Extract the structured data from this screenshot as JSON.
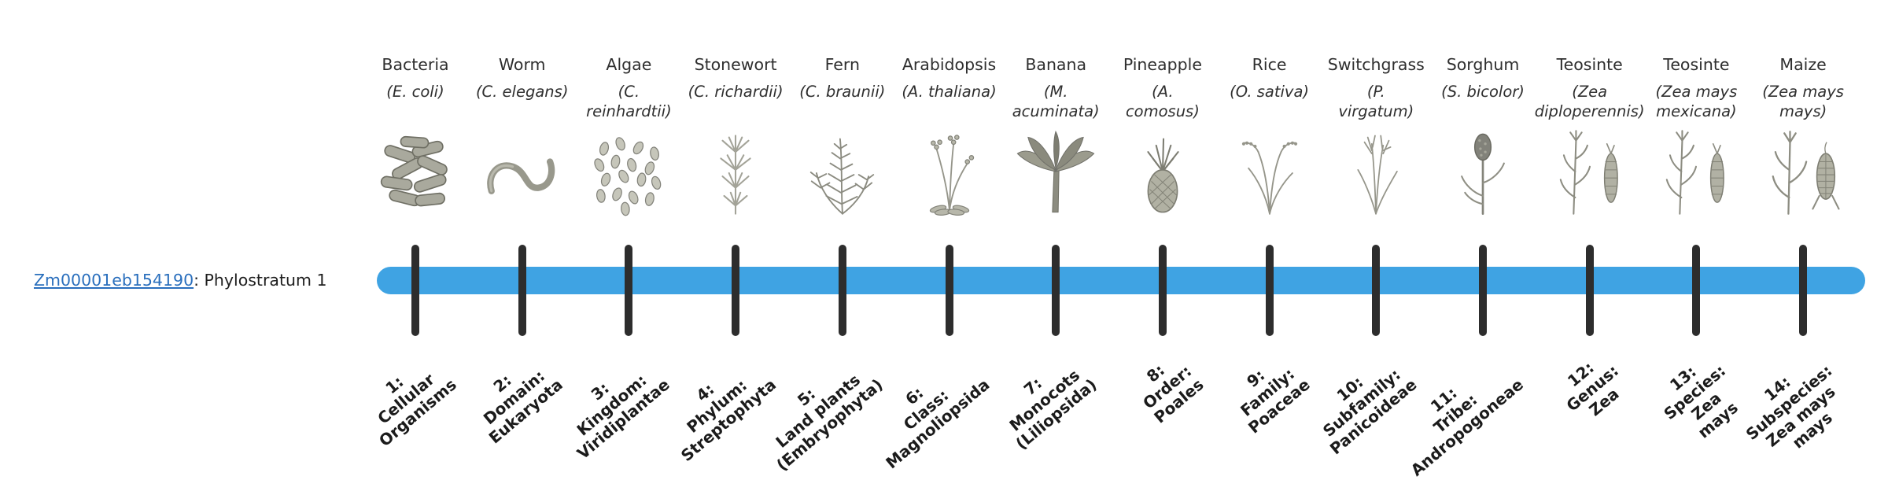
{
  "row": {
    "gene_id": "Zm00001eb154190",
    "label_rest": ": Phylostratum 1"
  },
  "colors": {
    "bar": "#3fa3e3",
    "tick": "#2d2d2d",
    "link": "#2a6fbd"
  },
  "columns": [
    {
      "name": "Bacteria",
      "sci": "(E. coli)",
      "icon": "bacteria-icon",
      "stratum": "1:\nCellular\nOrganisms"
    },
    {
      "name": "Worm",
      "sci": "(C. elegans)",
      "icon": "worm-icon",
      "stratum": "2:\nDomain:\nEukaryota"
    },
    {
      "name": "Algae",
      "sci": "(C.\nreinhardtii)",
      "icon": "algae-icon",
      "stratum": "3:\nKingdom:\nViridiplantae"
    },
    {
      "name": "Stonewort",
      "sci": "(C. richardii)",
      "icon": "stonewort-icon",
      "stratum": "4:\nPhylum:\nStreptophyta"
    },
    {
      "name": "Fern",
      "sci": "(C. braunii)",
      "icon": "fern-icon",
      "stratum": "5:\nLand plants\n(Embryophyta)"
    },
    {
      "name": "Arabidopsis",
      "sci": "(A. thaliana)",
      "icon": "arabidopsis-icon",
      "stratum": "6:\nClass:\nMagnoliopsida"
    },
    {
      "name": "Banana",
      "sci": "(M.\nacuminata)",
      "icon": "banana-icon",
      "stratum": "7:\nMonocots\n(Liliopsida)"
    },
    {
      "name": "Pineapple",
      "sci": "(A.\ncomosus)",
      "icon": "pineapple-icon",
      "stratum": "8:\nOrder:\nPoales"
    },
    {
      "name": "Rice",
      "sci": "(O. sativa)",
      "icon": "rice-icon",
      "stratum": "9:\nFamily:\nPoaceae"
    },
    {
      "name": "Switchgrass",
      "sci": "(P.\nvirgatum)",
      "icon": "switchgrass-icon",
      "stratum": "10:\nSubfamily:\nPanicoideae"
    },
    {
      "name": "Sorghum",
      "sci": "(S. bicolor)",
      "icon": "sorghum-icon",
      "stratum": "11:\nTribe:\nAndropogoneae"
    },
    {
      "name": "Teosinte",
      "sci": "(Zea\ndiploperennis)",
      "icon": "teosinte-icon",
      "stratum": "12:\nGenus:\nZea"
    },
    {
      "name": "Teosinte",
      "sci": "(Zea mays\nmexicana)",
      "icon": "teosinte-icon",
      "stratum": "13:\nSpecies:\nZea\nmays"
    },
    {
      "name": "Maize",
      "sci": "(Zea mays\nmays)",
      "icon": "maize-icon",
      "stratum": "14:\nSubspecies:\nZea mays\nmays"
    }
  ]
}
